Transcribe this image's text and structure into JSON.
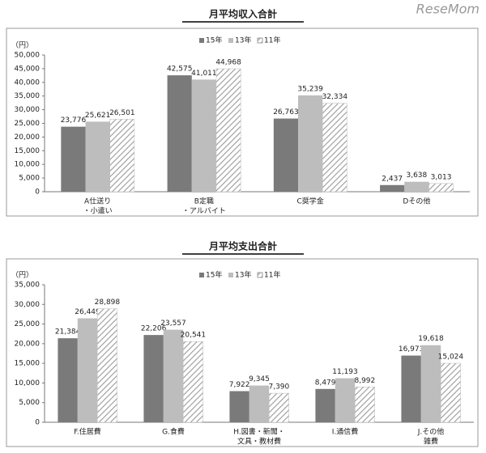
{
  "watermark": "ReseMom",
  "chart_data": [
    {
      "type": "bar",
      "title": "月平均収入合計",
      "unit": "（円）",
      "categories": [
        [
          "A仕送り",
          "・小遣い"
        ],
        [
          "B定職",
          "・アルバイト"
        ],
        [
          "C奨学金"
        ],
        [
          "Dその他"
        ]
      ],
      "series": [
        {
          "name": "15年",
          "color": "#7a7a7a",
          "values": [
            23776,
            42575,
            26763,
            2437
          ],
          "value_labels": [
            "23,776",
            "42,575",
            "26,763",
            "2,437"
          ]
        },
        {
          "name": "13年",
          "color": "#bdbdbd",
          "values": [
            25621,
            41011,
            35239,
            3638
          ],
          "value_labels": [
            "25,621",
            "41,011",
            "35,239",
            "3,638"
          ]
        },
        {
          "name": "11年",
          "color": "#9a9a9a",
          "pattern": "hatch",
          "values": [
            26501,
            44968,
            32334,
            3013
          ],
          "value_labels": [
            "26,501",
            "44,968",
            "32,334",
            "3,013"
          ]
        }
      ],
      "ylim": [
        0,
        50000
      ],
      "yticks": [
        0,
        {
          "value": 5000,
          "label": "5,000"
        },
        {
          "value": 10000,
          "label": "10,000"
        },
        {
          "value": 15000,
          "label": "15,000"
        },
        {
          "value": 20000,
          "label": "20,000"
        },
        {
          "value": 25000,
          "label": "25,000"
        },
        {
          "value": 30000,
          "label": "30,000"
        },
        {
          "value": 35000,
          "label": "35,000"
        },
        {
          "value": 40000,
          "label": "40,000"
        },
        {
          "value": 45000,
          "label": "45,000"
        },
        {
          "value": 50000,
          "label": "50,000"
        }
      ],
      "grid": false,
      "legend": "top"
    },
    {
      "type": "bar",
      "title": "月平均支出合計",
      "unit": "（円）",
      "categories": [
        [
          "F.住居費"
        ],
        [
          "G.食費"
        ],
        [
          "H.図書・新聞・",
          "文具・教材費"
        ],
        [
          "I.通信費"
        ],
        [
          "J.その他",
          "雑費"
        ]
      ],
      "series": [
        {
          "name": "15年",
          "color": "#7a7a7a",
          "values": [
            21384,
            22206,
            7922,
            8479,
            16973
          ],
          "value_labels": [
            "21,384",
            "22,206",
            "7,922",
            "8,479",
            "16,973"
          ]
        },
        {
          "name": "13年",
          "color": "#bdbdbd",
          "values": [
            26449,
            23557,
            9345,
            11193,
            19618
          ],
          "value_labels": [
            "26,449",
            "23,557",
            "9,345",
            "11,193",
            "19,618"
          ]
        },
        {
          "name": "11年",
          "color": "#9a9a9a",
          "pattern": "hatch",
          "values": [
            28898,
            20541,
            7390,
            8992,
            15024
          ],
          "value_labels": [
            "28,898",
            "20,541",
            "7,390",
            "8,992",
            "15,024"
          ]
        }
      ],
      "ylim": [
        0,
        35000
      ],
      "yticks": [
        0,
        {
          "value": 5000,
          "label": "5,000"
        },
        {
          "value": 10000,
          "label": "10,000"
        },
        {
          "value": 15000,
          "label": "15,000"
        },
        {
          "value": 20000,
          "label": "20,000"
        },
        {
          "value": 25000,
          "label": "25,000"
        },
        {
          "value": 30000,
          "label": "30,000"
        },
        {
          "value": 35000,
          "label": "35,000"
        }
      ],
      "grid": false,
      "legend": "top"
    }
  ]
}
